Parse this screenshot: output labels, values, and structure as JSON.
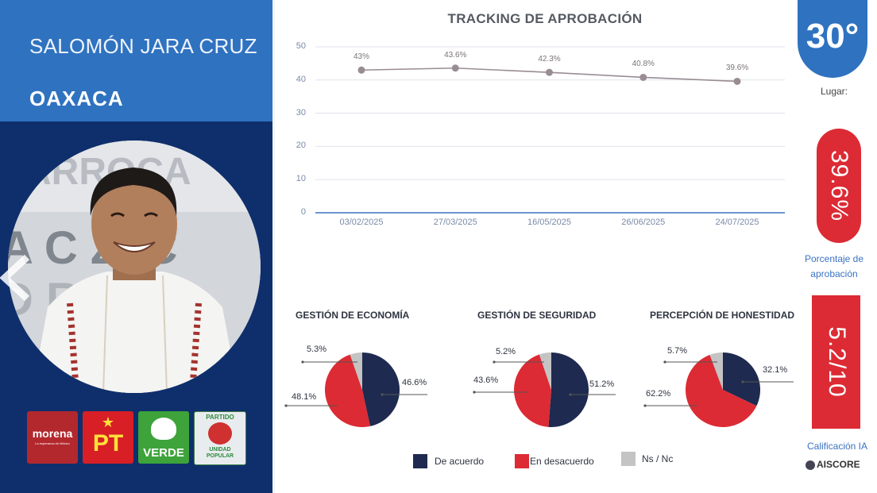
{
  "profile": {
    "name": "SALOMÓN JARA CRUZ",
    "state": "OAXACA",
    "photo_sign_text": "ARROCA   A CRUZ, C",
    "party_logos": [
      {
        "name": "morena",
        "text": "morena",
        "subtext": "La esperanza de México",
        "color": "#b3282d"
      },
      {
        "name": "pt",
        "text": "PT",
        "color": "#d81f26"
      },
      {
        "name": "verde",
        "text": "VERDE",
        "color": "#3da33a"
      },
      {
        "name": "unidad-popular",
        "text": "PARTIDO",
        "subtext": "UNIDAD POPULAR",
        "color": "#2d8a3e"
      }
    ]
  },
  "tracking": {
    "title": "TRACKING DE APROBACIÓN"
  },
  "chart_data": [
    {
      "type": "line",
      "title": "TRACKING DE APROBACIÓN",
      "x": [
        "03/02/2025",
        "27/03/2025",
        "16/05/2025",
        "26/06/2025",
        "24/07/2025"
      ],
      "series": [
        {
          "values": [
            43,
            43.6,
            42.3,
            40.8,
            39.6
          ],
          "labels": [
            "43%",
            "43.6%",
            "42.3%",
            "40.8%",
            "39.6%"
          ],
          "color": "#9a8c93"
        }
      ],
      "ylim": [
        0,
        50
      ],
      "yticks": [
        0,
        10,
        20,
        30,
        40,
        50
      ],
      "grid": true
    },
    {
      "type": "pie",
      "title": "GESTIÓN DE ECONOMÍA",
      "categories": [
        "De acuerdo",
        "En desacuerdo",
        "Ns / Nc"
      ],
      "values": [
        46.6,
        48.1,
        5.3
      ],
      "labels": [
        "46.6%",
        "48.1%",
        "5.3%"
      ]
    },
    {
      "type": "pie",
      "title": "GESTIÓN DE SEGURIDAD",
      "categories": [
        "De acuerdo",
        "En desacuerdo",
        "Ns / Nc"
      ],
      "values": [
        51.2,
        43.6,
        5.2
      ],
      "labels": [
        "51.2%",
        "43.6%",
        "5.2%"
      ]
    },
    {
      "type": "pie",
      "title": "PERCEPCIÓN DE HONESTIDAD",
      "categories": [
        "De acuerdo",
        "En desacuerdo",
        "Ns / Nc"
      ],
      "values": [
        32.1,
        62.2,
        5.7
      ],
      "labels": [
        "32.1%",
        "62.2%",
        "5.7%"
      ]
    }
  ],
  "legend": [
    {
      "label": "De acuerdo",
      "color": "#1e2a4f"
    },
    {
      "label": "En desacuerdo",
      "color": "#dc2b34"
    },
    {
      "label": "Ns / Nc",
      "color": "#c4c4c4"
    }
  ],
  "sidebar": {
    "rank": "30°",
    "rank_label": "Lugar:",
    "approval": "39.6%",
    "approval_label_1": "Porcentaje de",
    "approval_label_2": "aprobación",
    "ai_score": "5.2/10",
    "ai_label": "Calificación IA",
    "brand": "AISCORE"
  },
  "colors": {
    "dark_blue": "#0f2f6c",
    "accent_blue": "#2f72c0",
    "red": "#dc2b34",
    "gray": "#c4c4c4"
  }
}
